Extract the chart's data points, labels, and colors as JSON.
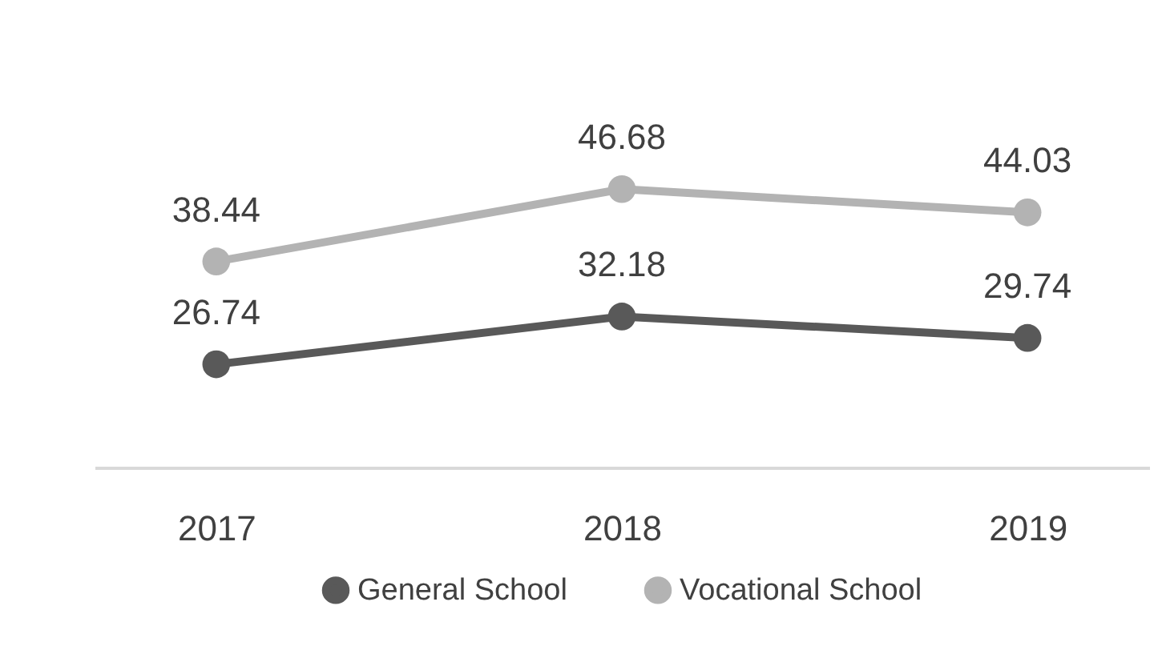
{
  "chart_data": {
    "type": "line",
    "categories": [
      "2017",
      "2018",
      "2019"
    ],
    "series": [
      {
        "name": "General School",
        "color": "#595959",
        "values": [
          26.74,
          32.18,
          29.74
        ]
      },
      {
        "name": "Vocational School",
        "color": "#b3b3b3",
        "values": [
          38.44,
          46.68,
          44.03
        ]
      }
    ],
    "data_labels": true,
    "legend": "bottom",
    "grid": false,
    "marker": "circle",
    "line_style": "solid",
    "tick_labels": "x"
  }
}
